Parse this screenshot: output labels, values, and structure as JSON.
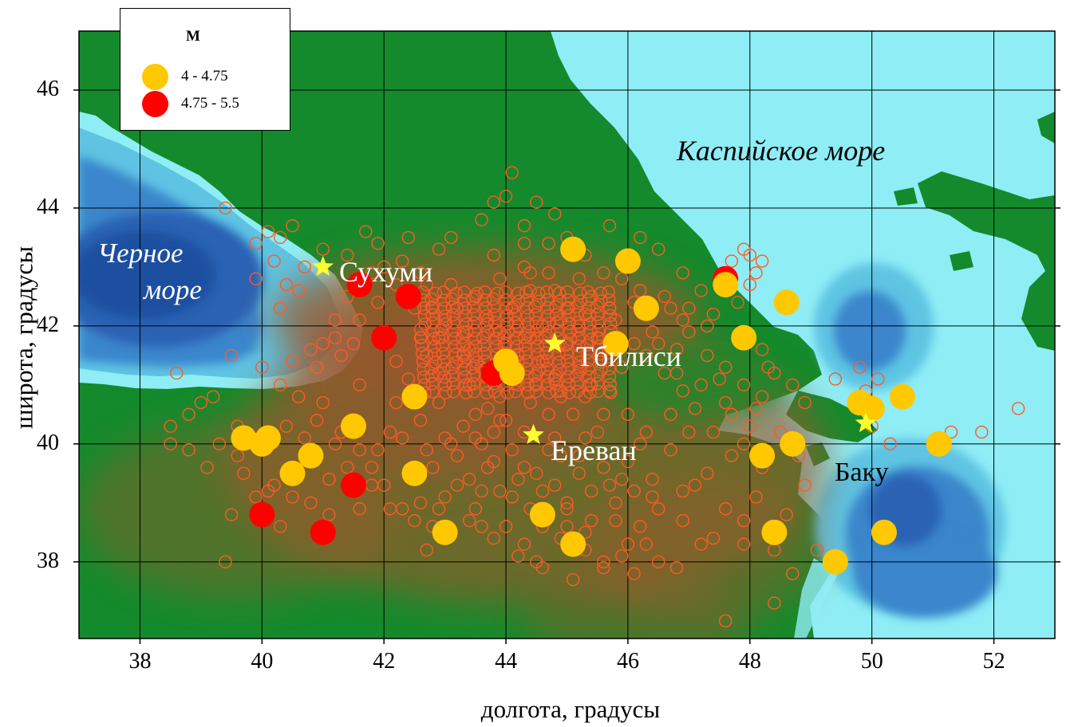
{
  "axes": {
    "xlabel": "долгота, градусы",
    "ylabel": "широта, градусы",
    "x_ticks": [
      "38",
      "40",
      "42",
      "44",
      "46",
      "48",
      "50",
      "52"
    ],
    "y_ticks": [
      "38",
      "40",
      "42",
      "44",
      "46"
    ],
    "xlim": [
      37,
      53
    ],
    "ylim": [
      36.7,
      47
    ]
  },
  "legend": {
    "title": "M",
    "items": [
      {
        "label": "4  -  4.75",
        "color": "#ffc800"
      },
      {
        "label": "4.75  -  5.5",
        "color": "#ff0000"
      }
    ]
  },
  "seas": {
    "caspian": "Каспийское море",
    "black_line1": "Черное",
    "black_line2": "море"
  },
  "cities": [
    {
      "name": "Сухуми",
      "lon": 41.0,
      "lat": 43.0
    },
    {
      "name": "Тбилиси",
      "lon": 44.8,
      "lat": 41.7
    },
    {
      "name": "Ереван",
      "lon": 44.45,
      "lat": 40.15
    },
    {
      "name": "Баку",
      "lon": 49.9,
      "lat": 40.35
    }
  ],
  "colors": {
    "sea_light": "#8fedf5",
    "sea_mid": "#5fc4e3",
    "sea_deep": "#2f6fc0",
    "lowland": "#148a2c",
    "highland": "#9a5a2a",
    "marker_open": "#ff5a28",
    "city_star": "#ffff30"
  },
  "quakes_m4": [
    [
      45.1,
      43.3
    ],
    [
      46.0,
      43.1
    ],
    [
      46.3,
      42.3
    ],
    [
      47.6,
      42.7
    ],
    [
      48.6,
      42.4
    ],
    [
      47.9,
      41.8
    ],
    [
      44.0,
      41.4
    ],
    [
      44.1,
      41.2
    ],
    [
      42.5,
      40.8
    ],
    [
      41.5,
      40.3
    ],
    [
      39.7,
      40.1
    ],
    [
      40.0,
      40.0
    ],
    [
      40.1,
      40.1
    ],
    [
      40.5,
      39.5
    ],
    [
      40.8,
      39.8
    ],
    [
      42.5,
      39.5
    ],
    [
      43.0,
      38.5
    ],
    [
      44.6,
      38.8
    ],
    [
      45.1,
      38.3
    ],
    [
      48.2,
      39.8
    ],
    [
      48.7,
      40.0
    ],
    [
      48.4,
      38.5
    ],
    [
      49.4,
      38.0
    ],
    [
      49.8,
      40.7
    ],
    [
      50.0,
      40.6
    ],
    [
      50.5,
      40.8
    ],
    [
      51.1,
      40.0
    ],
    [
      50.2,
      38.5
    ],
    [
      45.8,
      41.7
    ]
  ],
  "quakes_m475": [
    [
      41.6,
      42.7
    ],
    [
      42.4,
      42.5
    ],
    [
      42.0,
      41.8
    ],
    [
      43.8,
      41.2
    ],
    [
      41.5,
      39.3
    ],
    [
      40.0,
      38.8
    ],
    [
      41.0,
      38.5
    ],
    [
      47.6,
      42.8
    ]
  ],
  "quakes_small": [
    [
      39.4,
      44.0
    ],
    [
      39.9,
      43.4
    ],
    [
      40.1,
      43.6
    ],
    [
      40.3,
      43.5
    ],
    [
      40.5,
      43.7
    ],
    [
      40.2,
      43.1
    ],
    [
      39.9,
      42.8
    ],
    [
      40.6,
      42.6
    ],
    [
      40.3,
      42.3
    ],
    [
      41.4,
      42.5
    ],
    [
      41.2,
      42.1
    ],
    [
      41.0,
      41.7
    ],
    [
      41.5,
      41.7
    ],
    [
      40.9,
      41.3
    ],
    [
      41.3,
      41.5
    ],
    [
      40.5,
      41.4
    ],
    [
      40.0,
      41.3
    ],
    [
      39.5,
      41.5
    ],
    [
      38.6,
      41.2
    ],
    [
      39.0,
      40.7
    ],
    [
      39.2,
      40.8
    ],
    [
      39.6,
      40.3
    ],
    [
      38.5,
      40.3
    ],
    [
      38.5,
      40.0
    ],
    [
      38.8,
      39.9
    ],
    [
      39.7,
      39.5
    ],
    [
      40.1,
      39.2
    ],
    [
      39.5,
      38.8
    ],
    [
      40.3,
      38.6
    ],
    [
      41.1,
      38.8
    ],
    [
      39.4,
      38.0
    ],
    [
      40.4,
      40.3
    ],
    [
      40.7,
      40.1
    ],
    [
      40.9,
      40.4
    ],
    [
      41.2,
      40.0
    ],
    [
      41.8,
      39.6
    ],
    [
      41.6,
      38.9
    ],
    [
      42.1,
      40.2
    ],
    [
      41.9,
      39.9
    ],
    [
      41.9,
      43.4
    ],
    [
      42.4,
      43.5
    ],
    [
      41.7,
      43.6
    ],
    [
      42.3,
      43.1
    ],
    [
      42.0,
      43.0
    ],
    [
      42.9,
      43.3
    ],
    [
      42.6,
      42.9
    ],
    [
      43.1,
      43.5
    ],
    [
      43.8,
      44.1
    ],
    [
      44.1,
      44.6
    ],
    [
      44.0,
      44.2
    ],
    [
      44.5,
      44.1
    ],
    [
      44.3,
      43.7
    ],
    [
      43.6,
      43.8
    ],
    [
      44.7,
      43.4
    ],
    [
      45.0,
      43.5
    ],
    [
      45.3,
      43.2
    ],
    [
      45.7,
      43.7
    ],
    [
      46.2,
      43.5
    ],
    [
      46.5,
      43.3
    ],
    [
      46.9,
      42.9
    ],
    [
      46.6,
      42.5
    ],
    [
      47.2,
      42.6
    ],
    [
      47.4,
      42.2
    ],
    [
      47.0,
      41.9
    ],
    [
      47.7,
      43.1
    ],
    [
      47.9,
      43.3
    ],
    [
      48.0,
      43.2
    ],
    [
      48.1,
      42.9
    ],
    [
      48.2,
      43.1
    ],
    [
      48.0,
      42.7
    ],
    [
      47.8,
      42.4
    ],
    [
      48.2,
      41.6
    ],
    [
      48.4,
      41.2
    ],
    [
      48.7,
      41.0
    ],
    [
      48.9,
      40.7
    ],
    [
      48.2,
      40.8
    ],
    [
      47.7,
      40.5
    ],
    [
      47.4,
      40.2
    ],
    [
      47.1,
      40.6
    ],
    [
      46.9,
      40.9
    ],
    [
      46.6,
      41.2
    ],
    [
      46.3,
      41.5
    ],
    [
      48.5,
      40.2
    ],
    [
      48.8,
      39.8
    ],
    [
      48.9,
      39.3
    ],
    [
      48.6,
      38.8
    ],
    [
      48.4,
      38.2
    ],
    [
      48.4,
      37.3
    ],
    [
      47.6,
      37.0
    ],
    [
      48.7,
      37.8
    ],
    [
      49.1,
      38.2
    ],
    [
      49.4,
      37.9
    ],
    [
      49.4,
      41.1
    ],
    [
      49.8,
      41.3
    ],
    [
      50.1,
      41.1
    ],
    [
      49.9,
      40.9
    ],
    [
      50.0,
      40.3
    ],
    [
      50.3,
      40.0
    ],
    [
      51.1,
      40.1
    ],
    [
      51.3,
      40.2
    ],
    [
      51.8,
      40.2
    ],
    [
      52.4,
      40.6
    ],
    [
      47.3,
      39.5
    ],
    [
      46.9,
      39.2
    ],
    [
      46.5,
      38.9
    ],
    [
      46.2,
      38.6
    ],
    [
      46.0,
      38.3
    ],
    [
      45.6,
      38.0
    ],
    [
      45.3,
      38.2
    ],
    [
      45.1,
      37.7
    ],
    [
      44.5,
      38.0
    ],
    [
      44.3,
      38.3
    ],
    [
      43.8,
      38.4
    ],
    [
      43.4,
      38.7
    ],
    [
      42.9,
      38.9
    ],
    [
      42.6,
      39.0
    ],
    [
      43.2,
      39.3
    ],
    [
      43.7,
      39.6
    ],
    [
      44.1,
      39.9
    ],
    [
      44.9,
      39.8
    ],
    [
      45.2,
      39.5
    ],
    [
      45.7,
      39.3
    ],
    [
      46.0,
      39.7
    ],
    [
      46.2,
      40.0
    ],
    [
      45.5,
      40.2
    ],
    [
      45.1,
      40.5
    ],
    [
      44.9,
      40.8
    ],
    [
      44.5,
      41.0
    ],
    [
      43.3,
      41.9
    ],
    [
      43.0,
      42.1
    ],
    [
      42.7,
      41.5
    ],
    [
      42.4,
      41.1
    ],
    [
      42.2,
      40.7
    ],
    [
      42.6,
      40.4
    ],
    [
      43.0,
      40.1
    ],
    [
      43.5,
      40.5
    ],
    [
      43.9,
      40.8
    ],
    [
      44.2,
      41.5
    ],
    [
      44.6,
      42.0
    ],
    [
      45.0,
      42.3
    ],
    [
      45.4,
      42.5
    ],
    [
      45.8,
      42.1
    ],
    [
      45.5,
      41.8
    ],
    [
      45.2,
      41.3
    ],
    [
      45.7,
      40.9
    ],
    [
      46.0,
      40.5
    ],
    [
      46.3,
      40.2
    ],
    [
      46.7,
      39.9
    ],
    [
      47.1,
      39.3
    ],
    [
      47.6,
      38.9
    ],
    [
      47.9,
      38.3
    ],
    [
      47.4,
      38.4
    ],
    [
      46.9,
      38.7
    ],
    [
      46.5,
      38.0
    ],
    [
      46.1,
      37.8
    ],
    [
      45.0,
      38.9
    ],
    [
      44.8,
      39.3
    ],
    [
      44.3,
      39.6
    ],
    [
      43.9,
      39.2
    ],
    [
      43.5,
      38.9
    ],
    [
      43.1,
      38.5
    ],
    [
      42.7,
      38.2
    ],
    [
      42.3,
      38.9
    ],
    [
      42.0,
      39.3
    ],
    [
      41.6,
      39.9
    ],
    [
      41.3,
      40.2
    ],
    [
      41.0,
      40.7
    ],
    [
      41.6,
      41.0
    ],
    [
      42.2,
      41.4
    ],
    [
      42.6,
      41.8
    ],
    [
      43.4,
      41.0
    ],
    [
      43.8,
      40.2
    ],
    [
      44.7,
      40.5
    ],
    [
      45.3,
      40.1
    ],
    [
      45.9,
      39.4
    ],
    [
      46.4,
      39.1
    ],
    [
      47.7,
      39.8
    ],
    [
      48.0,
      40.3
    ],
    [
      47.5,
      41.1
    ],
    [
      47.3,
      41.5
    ],
    [
      46.8,
      41.6
    ],
    [
      46.4,
      41.9
    ],
    [
      46.1,
      42.4
    ],
    [
      45.6,
      42.9
    ],
    [
      45.2,
      42.8
    ],
    [
      44.7,
      42.9
    ],
    [
      44.3,
      43.0
    ],
    [
      43.9,
      42.8
    ],
    [
      43.5,
      42.5
    ],
    [
      43.1,
      42.7
    ],
    [
      42.8,
      42.3
    ],
    [
      44.1,
      42.3
    ],
    [
      44.4,
      42.6
    ],
    [
      44.8,
      42.6
    ],
    [
      45.2,
      42.0
    ],
    [
      45.0,
      41.7
    ],
    [
      44.6,
      41.4
    ],
    [
      44.2,
      41.0
    ],
    [
      43.7,
      40.6
    ],
    [
      43.3,
      40.3
    ],
    [
      42.9,
      40.7
    ],
    [
      42.9,
      41.2
    ],
    [
      43.3,
      41.5
    ],
    [
      43.6,
      41.3
    ],
    [
      44.0,
      41.7
    ],
    [
      44.4,
      41.8
    ],
    [
      44.8,
      41.1
    ],
    [
      45.3,
      40.8
    ],
    [
      45.6,
      40.5
    ],
    [
      44.7,
      39.9
    ],
    [
      44.3,
      40.2
    ],
    [
      43.9,
      40.4
    ],
    [
      43.6,
      40.0
    ],
    [
      43.2,
      39.8
    ],
    [
      42.8,
      39.6
    ],
    [
      42.4,
      39.5
    ],
    [
      44.0,
      38.6
    ],
    [
      44.6,
      38.6
    ],
    [
      45.0,
      38.6
    ],
    [
      45.4,
      38.7
    ],
    [
      45.8,
      38.7
    ],
    [
      46.4,
      39.4
    ],
    [
      46.7,
      40.5
    ],
    [
      47.0,
      40.2
    ],
    [
      46.8,
      41.2
    ],
    [
      47.2,
      41.0
    ],
    [
      47.6,
      41.3
    ],
    [
      47.9,
      41.0
    ],
    [
      48.3,
      41.3
    ],
    [
      48.1,
      40.6
    ],
    [
      44.2,
      42.0
    ],
    [
      43.7,
      42.1
    ],
    [
      43.2,
      42.3
    ],
    [
      42.7,
      42.7
    ],
    [
      42.5,
      42.3
    ],
    [
      42.9,
      41.8
    ],
    [
      43.4,
      41.6
    ],
    [
      43.9,
      41.9
    ],
    [
      44.9,
      42.1
    ],
    [
      45.3,
      42.2
    ],
    [
      45.7,
      42.3
    ],
    [
      46.1,
      41.7
    ],
    [
      45.9,
      41.3
    ],
    [
      45.4,
      41.0
    ],
    [
      44.9,
      40.9
    ],
    [
      44.4,
      40.7
    ],
    [
      44.0,
      40.4
    ],
    [
      43.5,
      40.1
    ],
    [
      43.1,
      40.0
    ],
    [
      42.7,
      39.9
    ],
    [
      42.3,
      40.1
    ],
    [
      44.2,
      39.4
    ],
    [
      44.6,
      39.2
    ],
    [
      45.0,
      39.0
    ],
    [
      45.4,
      39.2
    ],
    [
      45.8,
      39.0
    ],
    [
      46.1,
      39.2
    ],
    [
      45.6,
      39.6
    ],
    [
      45.2,
      39.8
    ],
    [
      44.8,
      40.1
    ],
    [
      43.8,
      39.7
    ],
    [
      43.4,
      39.4
    ],
    [
      43.0,
      39.1
    ],
    [
      44.4,
      38.9
    ],
    [
      44.9,
      38.4
    ],
    [
      45.3,
      38.5
    ],
    [
      44.1,
      39.1
    ],
    [
      44.5,
      39.5
    ],
    [
      43.6,
      39.2
    ],
    [
      44.3,
      43.4
    ],
    [
      43.8,
      43.2
    ],
    [
      44.8,
      43.9
    ],
    [
      44.4,
      42.9
    ],
    [
      45.9,
      42.8
    ],
    [
      46.2,
      42.6
    ],
    [
      46.7,
      42.3
    ],
    [
      47.0,
      42.3
    ],
    [
      47.3,
      42.0
    ],
    [
      46.9,
      42.1
    ],
    [
      46.5,
      41.7
    ],
    [
      47.6,
      40.7
    ],
    [
      47.9,
      40.0
    ],
    [
      48.2,
      39.6
    ],
    [
      48.1,
      39.1
    ],
    [
      47.9,
      38.7
    ],
    [
      47.2,
      38.3
    ],
    [
      46.8,
      37.9
    ],
    [
      46.3,
      38.3
    ],
    [
      45.9,
      38.1
    ],
    [
      45.6,
      37.9
    ],
    [
      44.6,
      37.9
    ],
    [
      44.2,
      38.1
    ],
    [
      43.6,
      38.6
    ],
    [
      42.8,
      38.6
    ],
    [
      42.5,
      38.7
    ],
    [
      42.1,
      38.9
    ],
    [
      41.8,
      39.3
    ],
    [
      41.4,
      39.6
    ],
    [
      41.1,
      39.4
    ],
    [
      40.8,
      39.0
    ],
    [
      40.5,
      39.1
    ],
    [
      40.2,
      39.3
    ],
    [
      39.9,
      39.1
    ],
    [
      39.6,
      39.8
    ],
    [
      39.3,
      40.0
    ],
    [
      39.1,
      39.6
    ],
    [
      38.8,
      40.5
    ],
    [
      40.6,
      40.8
    ],
    [
      40.3,
      41.0
    ],
    [
      40.8,
      41.6
    ],
    [
      41.2,
      41.8
    ],
    [
      41.6,
      42.1
    ],
    [
      41.9,
      42.4
    ],
    [
      42.2,
      42.7
    ],
    [
      41.8,
      42.9
    ],
    [
      41.4,
      43.2
    ],
    [
      41.0,
      43.3
    ],
    [
      40.7,
      43.0
    ],
    [
      40.4,
      42.7
    ]
  ]
}
